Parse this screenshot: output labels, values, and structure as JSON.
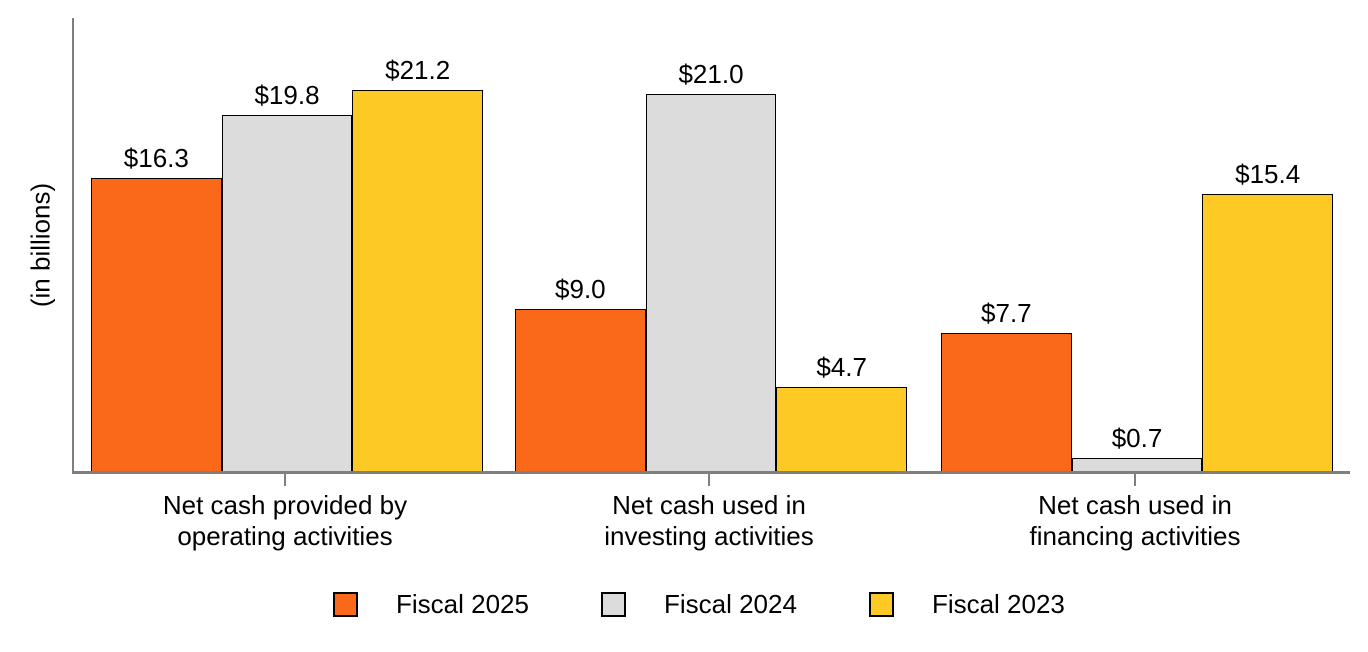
{
  "chart_data": {
    "type": "bar",
    "ylabel": "(in billions)",
    "categories": [
      [
        "Net cash provided by",
        "operating activities"
      ],
      [
        "Net cash used in",
        "investing activities"
      ],
      [
        "Net cash used in",
        "financing activities"
      ]
    ],
    "series": [
      {
        "name": "Fiscal 2025",
        "color": "#FA6919",
        "values": [
          16.3,
          9.0,
          7.7
        ],
        "labels": [
          "$16.3",
          "$9.0",
          "$7.7"
        ]
      },
      {
        "name": "Fiscal 2024",
        "color": "#DCDCDC",
        "values": [
          19.8,
          21.0,
          0.7
        ],
        "labels": [
          "$19.8",
          "$21.0",
          "$0.7"
        ]
      },
      {
        "name": "Fiscal 2023",
        "color": "#FDCA25",
        "values": [
          21.2,
          4.7,
          15.4
        ],
        "labels": [
          "$21.2",
          "$4.7",
          "$15.4"
        ]
      }
    ],
    "ylim": [
      0,
      25.2
    ],
    "grid": false,
    "legend_position": "bottom",
    "axis_color": "#7F7F7F",
    "bar_border_color": "#000000",
    "text_color": "#000000"
  }
}
